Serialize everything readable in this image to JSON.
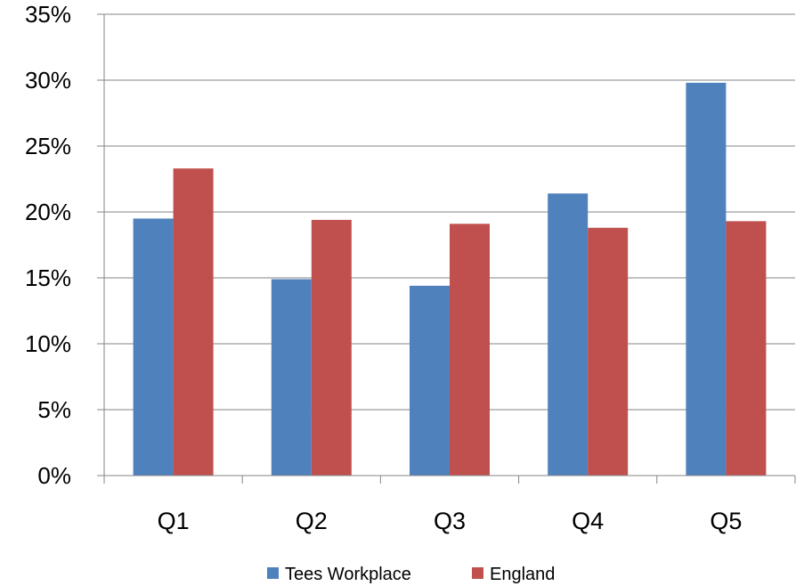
{
  "chart_data": {
    "type": "bar",
    "title": "",
    "xlabel": "",
    "ylabel": "",
    "categories": [
      "Q1",
      "Q2",
      "Q3",
      "Q4",
      "Q5"
    ],
    "series": [
      {
        "name": "Tees Workplace",
        "color": "#4F81BD",
        "values": [
          19.5,
          14.9,
          14.4,
          21.4,
          29.8
        ]
      },
      {
        "name": "England",
        "color": "#C0504D",
        "values": [
          23.3,
          19.4,
          19.1,
          18.8,
          19.3
        ]
      }
    ],
    "ylim": [
      0,
      35
    ],
    "yticks": [
      0,
      5,
      10,
      15,
      20,
      25,
      30,
      35
    ],
    "ytick_labels": [
      "0%",
      "5%",
      "10%",
      "15%",
      "20%",
      "25%",
      "30%",
      "35%"
    ],
    "grid": true,
    "legend_position": "bottom"
  }
}
